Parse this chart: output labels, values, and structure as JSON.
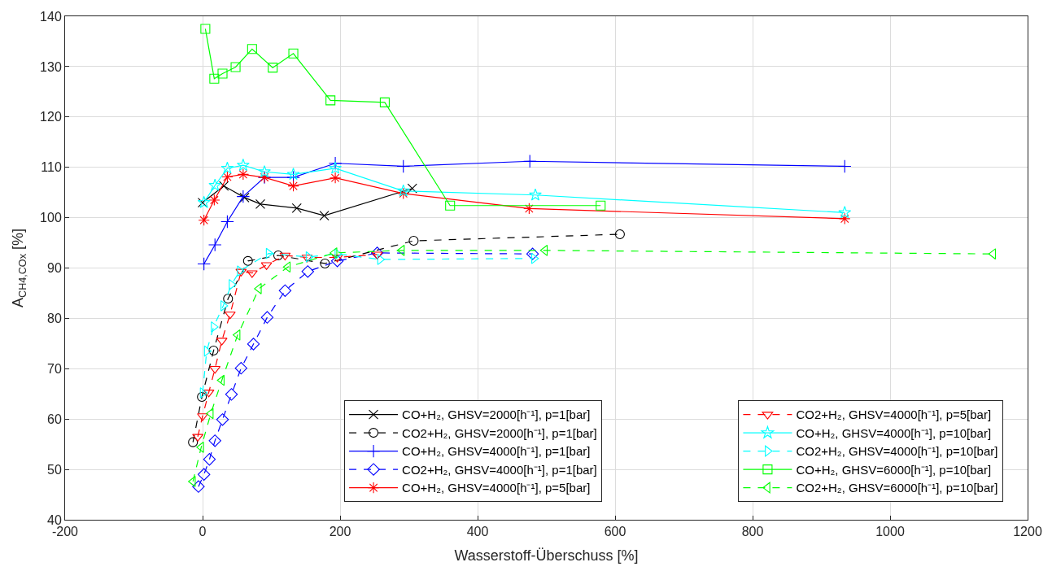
{
  "chart_data": {
    "type": "line",
    "xlabel": "Wasserstoff-Überschuss [%]",
    "ylabel": "A$_{CH4,COx}$ [%]",
    "xlim": [
      -200,
      1200
    ],
    "xticks": [
      -200,
      0,
      200,
      400,
      600,
      800,
      1000,
      1200
    ],
    "ylim": [
      40,
      140
    ],
    "yticks": [
      40,
      50,
      60,
      70,
      80,
      90,
      100,
      110,
      120,
      130,
      140
    ],
    "grid": true,
    "legend": "bottom right",
    "series": [
      {
        "name": "CO+H₂, GHSV=2000[h⁻¹], p=1[bar]",
        "color": "#000000",
        "marker": "x",
        "line_style": "solid",
        "x": [
          0,
          31,
          61,
          84,
          137,
          177,
          305
        ],
        "values": [
          103,
          106.3,
          104,
          102.7,
          101.9,
          100.4,
          105.8
        ]
      },
      {
        "name": "CO2+H₂, GHSV=2000[h⁻¹], p=1[bar]",
        "color": "#000000",
        "marker": "circle",
        "line_style": "dashed",
        "x": [
          -14,
          -1,
          16,
          37,
          66,
          110,
          178,
          307,
          607
        ],
        "values": [
          55.4,
          64.4,
          73.6,
          83.9,
          91.4,
          92.5,
          90.9,
          95.4,
          96.7
        ]
      },
      {
        "name": "CO+H₂, GHSV=4000[h⁻¹], p=1[bar]",
        "color": "#0000ff",
        "marker": "plus",
        "line_style": "solid",
        "x": [
          2,
          18,
          36,
          59,
          90,
          132,
          193,
          292,
          476,
          934
        ],
        "values": [
          90.8,
          94.6,
          99.2,
          104.2,
          108,
          108,
          110.8,
          110.2,
          111.2,
          110.2
        ]
      },
      {
        "name": "CO2+H₂, GHSV=4000[h⁻¹], p=1[bar]",
        "color": "#0000ff",
        "marker": "diamond",
        "line_style": "dashed",
        "x": [
          -6,
          2,
          10,
          18,
          29,
          42,
          56,
          74,
          94,
          120,
          153,
          196,
          254,
          480
        ],
        "values": [
          46.6,
          49,
          52,
          55.7,
          59.9,
          64.9,
          70.1,
          74.9,
          80.2,
          85.5,
          89.3,
          91.4,
          93,
          92.8
        ]
      },
      {
        "name": "CO+H₂, GHSV=4000[h⁻¹], p=5[bar]",
        "color": "#ff0000",
        "marker": "cross",
        "line_style": "solid",
        "x": [
          2,
          17,
          36,
          59,
          90,
          132,
          193,
          292,
          475,
          934
        ],
        "values": [
          99.5,
          103.5,
          108.1,
          108.6,
          108,
          106.3,
          107.9,
          104.8,
          101.8,
          99.8
        ]
      },
      {
        "name": "CO2+H₂, GHSV=4000[h⁻¹], p=5[bar]",
        "color": "#ff0000",
        "marker": "triangle-down",
        "line_style": "dashed",
        "x": [
          -7,
          0,
          9,
          18,
          28,
          40,
          56,
          72,
          93,
          120,
          152,
          196,
          254
        ],
        "values": [
          56.5,
          60.6,
          65.3,
          70,
          75.6,
          80.8,
          89.3,
          89,
          90.6,
          92.5,
          92.1,
          92.1,
          92.7
        ]
      },
      {
        "name": "CO+H₂, GHSV=4000[h⁻¹], p=10[bar]",
        "color": "#00ffff",
        "marker": "star",
        "line_style": "solid",
        "x": [
          2,
          18,
          36,
          59,
          90,
          132,
          193,
          292,
          484,
          934
        ],
        "values": [
          103,
          106.4,
          109.8,
          110.4,
          109.1,
          108.6,
          109.8,
          105.3,
          104.5,
          101
        ]
      },
      {
        "name": "CO2+H₂, GHSV=4000[h⁻¹], p=10[bar]",
        "color": "#00ffff",
        "marker": "triangle-right",
        "line_style": "dashed",
        "x": [
          0,
          6,
          16,
          30,
          42,
          54,
          96,
          154,
          196,
          258,
          482
        ],
        "values": [
          65.2,
          73.5,
          78.3,
          82.5,
          86.7,
          89.4,
          92.9,
          92.2,
          92.8,
          91.7,
          91.9
        ]
      },
      {
        "name": "CO+H₂, GHSV=6000[h⁻¹], p=10[bar]",
        "color": "#00ff00",
        "marker": "square",
        "line_style": "solid",
        "x": [
          4,
          17,
          29,
          48,
          72,
          102,
          132,
          186,
          265,
          360,
          579
        ],
        "values": [
          137.5,
          127.6,
          128.6,
          129.9,
          133.5,
          129.8,
          132.6,
          123.3,
          122.9,
          102.4,
          102.4
        ]
      },
      {
        "name": "CO2+H₂, GHSV=6000[h⁻¹], p=10[bar]",
        "color": "#00ff00",
        "marker": "triangle-left",
        "line_style": "dashed",
        "x": [
          -14,
          -2,
          12,
          28,
          51,
          82,
          124,
          192,
          290,
          498,
          1150
        ],
        "values": [
          47.6,
          54.4,
          61.1,
          67.7,
          76.7,
          85.9,
          90.2,
          93,
          93.5,
          93.5,
          92.8
        ]
      }
    ]
  }
}
